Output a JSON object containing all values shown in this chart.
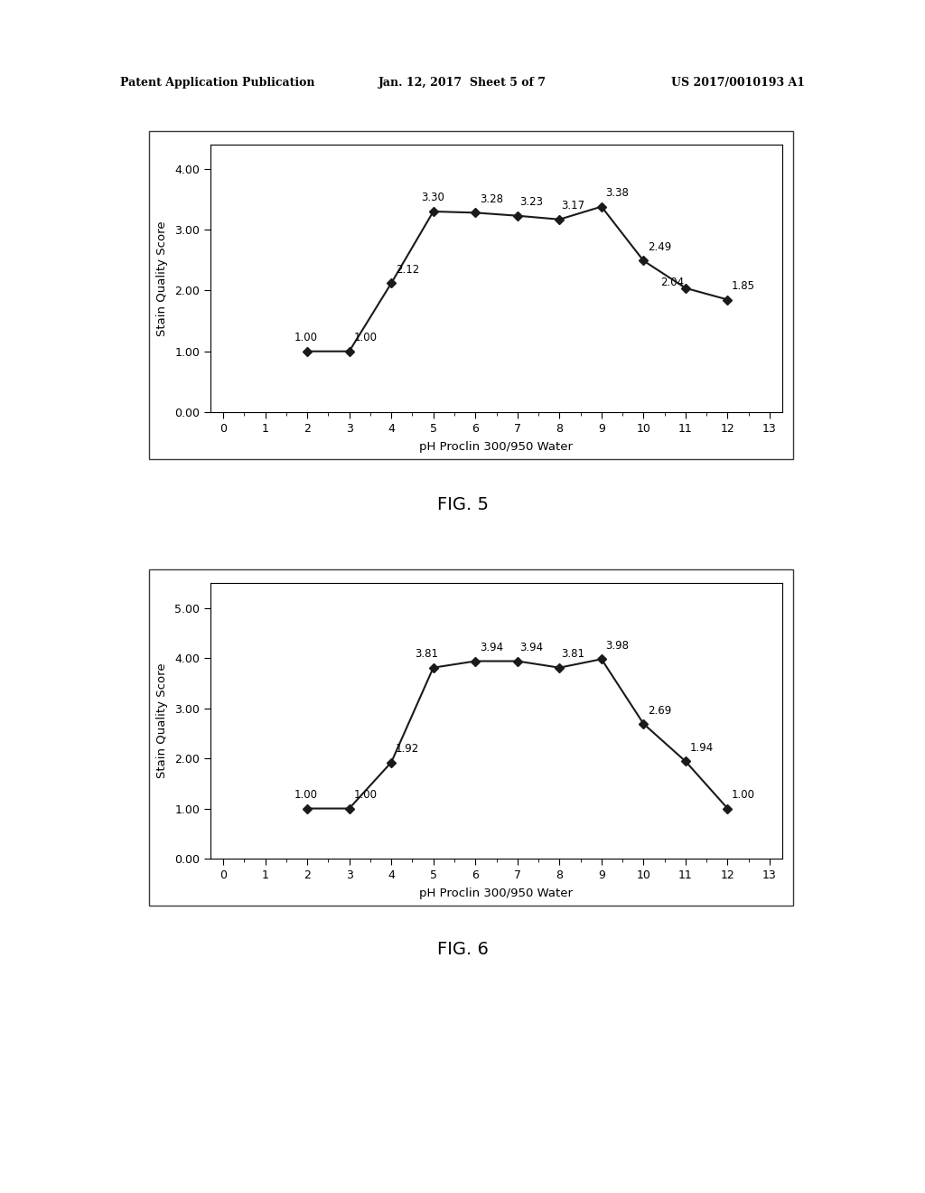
{
  "fig5": {
    "x": [
      2,
      3,
      4,
      5,
      6,
      7,
      8,
      9,
      10,
      11,
      12
    ],
    "y": [
      1.0,
      1.0,
      2.12,
      3.3,
      3.28,
      3.23,
      3.17,
      3.38,
      2.49,
      2.04,
      1.85
    ],
    "labels": [
      "1.00",
      "1.00",
      "2.12",
      "3.30",
      "3.28",
      "3.23",
      "3.17",
      "3.38",
      "2.49",
      "2.04",
      "1.85"
    ],
    "label_dx": [
      -0.3,
      0.1,
      0.1,
      -0.3,
      0.1,
      0.05,
      0.05,
      0.1,
      0.1,
      -0.6,
      0.1
    ],
    "label_dy": [
      0.13,
      0.13,
      0.13,
      0.13,
      0.13,
      0.13,
      0.13,
      0.13,
      0.13,
      0.0,
      0.13
    ],
    "ylabel": "Stain Quality Score",
    "xlabel": "pH Proclin 300/950 Water",
    "ylim": [
      0.0,
      4.4
    ],
    "yticks": [
      0.0,
      1.0,
      2.0,
      3.0,
      4.0
    ],
    "ytick_labels": [
      "0.00",
      "1.00",
      "2.00",
      "3.00",
      "4.00"
    ],
    "xlim": [
      -0.3,
      13.3
    ],
    "xticks": [
      0,
      1,
      2,
      3,
      4,
      5,
      6,
      7,
      8,
      9,
      10,
      11,
      12,
      13
    ],
    "fig_label": "FIG. 5"
  },
  "fig6": {
    "x": [
      2,
      3,
      4,
      5,
      6,
      7,
      8,
      9,
      10,
      11,
      12
    ],
    "y": [
      1.0,
      1.0,
      1.92,
      3.81,
      3.94,
      3.94,
      3.81,
      3.98,
      2.69,
      1.94,
      1.0
    ],
    "labels": [
      "1.00",
      "1.00",
      "1.92",
      "3.81",
      "3.94",
      "3.94",
      "3.81",
      "3.98",
      "2.69",
      "1.94",
      "1.00"
    ],
    "label_dx": [
      -0.3,
      0.1,
      0.1,
      -0.45,
      0.1,
      0.05,
      0.05,
      0.1,
      0.1,
      0.1,
      0.1
    ],
    "label_dy": [
      0.15,
      0.15,
      0.15,
      0.15,
      0.15,
      0.15,
      0.15,
      0.15,
      0.15,
      0.15,
      0.15
    ],
    "ylabel": "Stain Quality Score",
    "xlabel": "pH Proclin 300/950 Water",
    "ylim": [
      0.0,
      5.5
    ],
    "yticks": [
      0.0,
      1.0,
      2.0,
      3.0,
      4.0,
      5.0
    ],
    "ytick_labels": [
      "0.00",
      "1.00",
      "2.00",
      "3.00",
      "4.00",
      "5.00"
    ],
    "xlim": [
      -0.3,
      13.3
    ],
    "xticks": [
      0,
      1,
      2,
      3,
      4,
      5,
      6,
      7,
      8,
      9,
      10,
      11,
      12,
      13
    ],
    "fig_label": "FIG. 6"
  },
  "line_color": "#1a1a1a",
  "marker": "D",
  "marker_size": 5,
  "marker_facecolor": "#1a1a1a",
  "line_width": 1.5,
  "font_size_labels": 8.5,
  "font_size_axis_label": 9.5,
  "font_size_fig_label": 14,
  "font_size_tick": 9,
  "header_left": "Patent Application Publication",
  "header_center": "Jan. 12, 2017  Sheet 5 of 7",
  "header_right": "US 2017/0010193 A1",
  "bg_color": "#ffffff"
}
